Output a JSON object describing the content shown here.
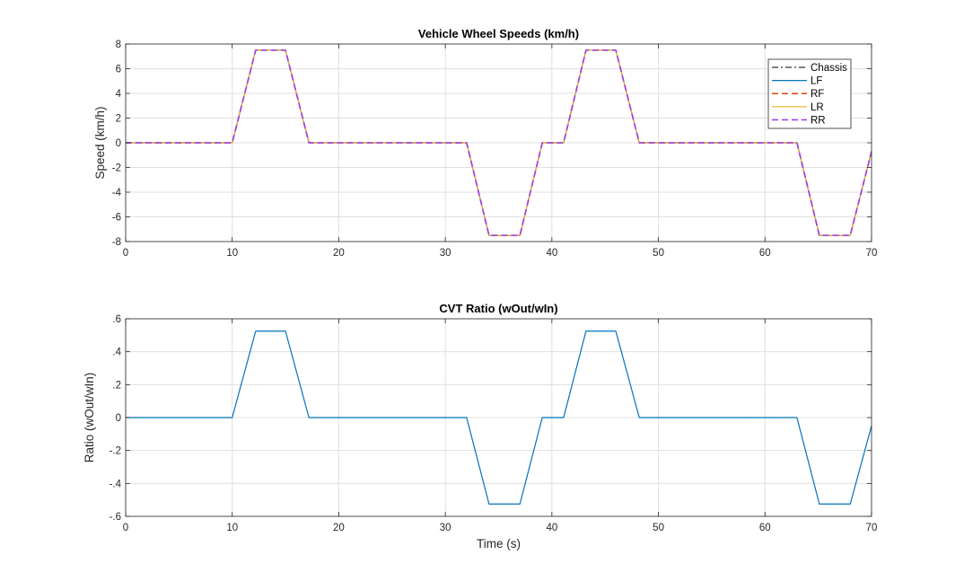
{
  "chart_data": [
    {
      "type": "line",
      "title": "Vehicle Wheel Speeds (km/h)",
      "xlabel": "",
      "ylabel": "Speed (km/h)",
      "xlim": [
        0,
        70
      ],
      "ylim": [
        -8,
        8
      ],
      "xticks": [
        0,
        10,
        20,
        30,
        40,
        50,
        60,
        70
      ],
      "yticks": [
        -8,
        -6,
        -4,
        -2,
        0,
        2,
        4,
        6,
        8
      ],
      "grid": true,
      "legend_position": "top-right",
      "x": [
        0,
        10,
        12.2,
        15,
        17.2,
        32,
        34.1,
        37,
        39.1,
        41.1,
        43.2,
        46,
        48.2,
        63,
        65.1,
        68,
        70
      ],
      "series": [
        {
          "name": "Chassis",
          "color": "#333333",
          "dash": "dash-dot",
          "values": [
            0,
            0,
            7.5,
            7.5,
            0,
            0,
            -7.5,
            -7.5,
            0,
            0,
            7.5,
            7.5,
            0,
            0,
            -7.5,
            -7.5,
            -0.7
          ]
        },
        {
          "name": "LF",
          "color": "#0072BD",
          "dash": "solid",
          "values": [
            0,
            0,
            7.5,
            7.5,
            0,
            0,
            -7.5,
            -7.5,
            0,
            0,
            7.5,
            7.5,
            0,
            0,
            -7.5,
            -7.5,
            -0.7
          ]
        },
        {
          "name": "RF",
          "color": "#D95319",
          "dash": "dashed",
          "values": [
            0,
            0,
            7.5,
            7.5,
            0,
            0,
            -7.5,
            -7.5,
            0,
            0,
            7.5,
            7.5,
            0,
            0,
            -7.5,
            -7.5,
            -0.7
          ]
        },
        {
          "name": "LR",
          "color": "#EDB120",
          "dash": "solid",
          "values": [
            0,
            0,
            7.5,
            7.5,
            0,
            0,
            -7.5,
            -7.5,
            0,
            0,
            7.5,
            7.5,
            0,
            0,
            -7.5,
            -7.5,
            -0.7
          ]
        },
        {
          "name": "RR",
          "color": "#A040F0",
          "dash": "dashed",
          "values": [
            0,
            0,
            7.5,
            7.5,
            0,
            0,
            -7.5,
            -7.5,
            0,
            0,
            7.5,
            7.5,
            0,
            0,
            -7.5,
            -7.5,
            -0.7
          ]
        }
      ]
    },
    {
      "type": "line",
      "title": "CVT Ratio (wOut/wIn)",
      "xlabel": "Time (s)",
      "ylabel": "Ratio (wOut/wIn)",
      "xlim": [
        0,
        70
      ],
      "ylim": [
        -0.6,
        0.6
      ],
      "xticks": [
        0,
        10,
        20,
        30,
        40,
        50,
        60,
        70
      ],
      "yticks": [
        -0.6,
        -0.4,
        -0.2,
        0,
        0.2,
        0.4,
        0.6
      ],
      "grid": true,
      "x": [
        0,
        10,
        12.2,
        15,
        17.2,
        32,
        34.1,
        37,
        39.1,
        41.1,
        43.2,
        46,
        48.2,
        63,
        65.1,
        68,
        70
      ],
      "series": [
        {
          "color": "#0072BD",
          "dash": "solid",
          "values": [
            0,
            0,
            0.525,
            0.525,
            0,
            0,
            -0.525,
            -0.525,
            0,
            0,
            0.525,
            0.525,
            0,
            0,
            -0.525,
            -0.525,
            -0.05
          ]
        }
      ]
    }
  ]
}
